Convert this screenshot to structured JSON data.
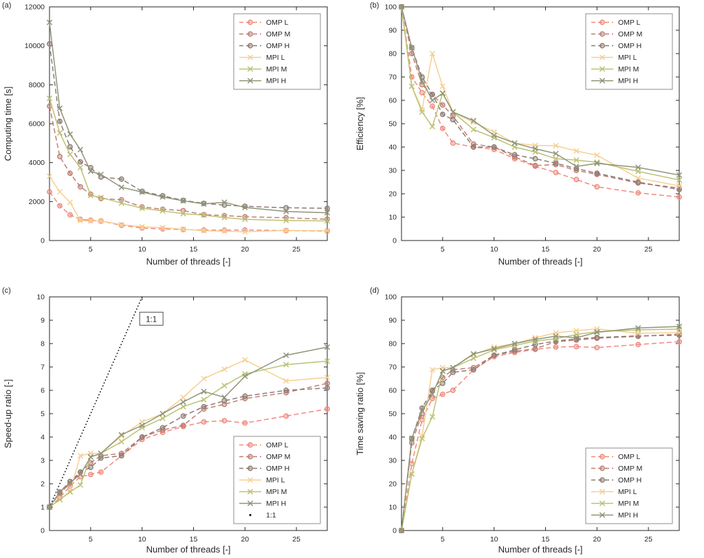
{
  "figure": {
    "background": "#ffffff",
    "text_color": "#262626",
    "axis_color": "#262626",
    "series_styles": [
      {
        "name": "OMP L",
        "color": "#f0897d",
        "line": "dashed",
        "marker": "circle"
      },
      {
        "name": "OMP M",
        "color": "#bf7e74",
        "line": "dashed",
        "marker": "circle"
      },
      {
        "name": "OMP H",
        "color": "#8c7a72",
        "line": "dashed",
        "marker": "circle"
      },
      {
        "name": "MPI L",
        "color": "#f6cf92",
        "line": "solid",
        "marker": "x"
      },
      {
        "name": "MPI M",
        "color": "#bcc173",
        "line": "solid",
        "marker": "x"
      },
      {
        "name": "MPI H",
        "color": "#8e9478",
        "line": "solid",
        "marker": "x"
      },
      {
        "name": "1:1",
        "color": "#1a1a1a",
        "line": "dotted",
        "marker": "dot"
      }
    ]
  },
  "chart_data": [
    {
      "id": "a",
      "panel_label": "(a)",
      "type": "line",
      "xlabel": "Number of threads [-]",
      "ylabel": "Computing time [s]",
      "xlim": [
        1,
        28
      ],
      "ylim": [
        0,
        12000
      ],
      "xticks": [
        5,
        10,
        15,
        20,
        25
      ],
      "yticks": [
        0,
        2000,
        4000,
        6000,
        8000,
        10000,
        12000
      ],
      "grid": false,
      "legend": {
        "position": "top-right",
        "entries": [
          "OMP L",
          "OMP M",
          "OMP H",
          "MPI L",
          "MPI M",
          "MPI H"
        ]
      },
      "x": [
        1,
        2,
        3,
        4,
        5,
        6,
        8,
        10,
        12,
        14,
        16,
        18,
        20,
        24,
        28
      ],
      "series": [
        {
          "name": "OMP L",
          "values": [
            2500,
            1786,
            1316,
            1087,
            1042,
            1000,
            781,
            641,
            595,
            562,
            538,
            532,
            543,
            510,
            481
          ]
        },
        {
          "name": "OMP M",
          "values": [
            6900,
            4313,
            3450,
            2760,
            2379,
            2156,
            2091,
            1725,
            1605,
            1533,
            1327,
            1278,
            1221,
            1169,
            1095
          ]
        },
        {
          "name": "OMP H",
          "values": [
            10100,
            6121,
            4810,
            4040,
            3741,
            3258,
            3156,
            2525,
            2295,
            2061,
            1906,
            1820,
            1757,
            1683,
            1656
          ]
        },
        {
          "name": "MPI L",
          "values": [
            3300,
            2500,
            1964,
            1031,
            1000,
            1000,
            815,
            710,
            660,
            579,
            508,
            478,
            452,
            516,
            504
          ]
        },
        {
          "name": "MPI M",
          "values": [
            7300,
            5530,
            4424,
            3744,
            2317,
            2212,
            1921,
            1659,
            1521,
            1377,
            1304,
            1177,
            1090,
            1028,
            1007
          ]
        },
        {
          "name": "MPI H",
          "values": [
            11200,
            6788,
            5463,
            4667,
            3556,
            3394,
            2732,
            2489,
            2240,
            2036,
            1882,
            1965,
            1697,
            1493,
            1427
          ]
        }
      ]
    },
    {
      "id": "b",
      "panel_label": "(b)",
      "type": "line",
      "xlabel": "Number of threads [-]",
      "ylabel": "Efficiency [%]",
      "xlim": [
        1,
        28
      ],
      "ylim": [
        0,
        100
      ],
      "xticks": [
        5,
        10,
        15,
        20,
        25
      ],
      "yticks": [
        0,
        10,
        20,
        30,
        40,
        50,
        60,
        70,
        80,
        90,
        100
      ],
      "grid": false,
      "legend": {
        "position": "top-right",
        "entries": [
          "OMP L",
          "OMP M",
          "OMP H",
          "MPI L",
          "MPI M",
          "MPI H"
        ]
      },
      "x": [
        1,
        2,
        3,
        4,
        5,
        6,
        8,
        10,
        12,
        14,
        16,
        18,
        20,
        24,
        28
      ],
      "series": [
        {
          "name": "OMP L",
          "values": [
            100,
            70,
            63.3,
            57.5,
            48,
            41.7,
            40,
            39,
            35,
            31.8,
            29.1,
            26.1,
            23,
            20.4,
            18.6
          ]
        },
        {
          "name": "OMP M",
          "values": [
            100,
            80,
            66.7,
            62.5,
            58,
            53.3,
            41.3,
            40,
            35.8,
            32.1,
            32.5,
            30,
            28.3,
            24.6,
            22.5
          ]
        },
        {
          "name": "OMP H",
          "values": [
            100,
            82.5,
            70,
            62.5,
            54,
            51.7,
            40,
            40,
            36.7,
            35,
            33.1,
            30.8,
            28.8,
            25,
            21.8
          ]
        },
        {
          "name": "MPI L",
          "values": [
            100,
            66,
            56,
            80,
            66,
            55,
            50.6,
            46.5,
            41.7,
            40.7,
            40.6,
            38.3,
            36.5,
            26.7,
            23.4
          ]
        },
        {
          "name": "MPI M",
          "values": [
            100,
            66,
            55,
            48.8,
            63,
            55,
            47.5,
            44,
            40,
            37.9,
            35,
            34.4,
            33.5,
            29.6,
            25.9
          ]
        },
        {
          "name": "MPI H",
          "values": [
            100,
            82.5,
            68.3,
            60,
            63,
            55,
            51.3,
            45,
            41.7,
            39.3,
            37.2,
            31.7,
            33,
            31.3,
            28
          ]
        }
      ]
    },
    {
      "id": "c",
      "panel_label": "(c)",
      "type": "line",
      "xlabel": "Number of threads [-]",
      "ylabel": "Speed-up ratio [-]",
      "xlim": [
        1,
        28
      ],
      "ylim": [
        0,
        10
      ],
      "xticks": [
        5,
        10,
        15,
        20,
        25
      ],
      "yticks": [
        0,
        1,
        2,
        3,
        4,
        5,
        6,
        7,
        8,
        9,
        10
      ],
      "grid": false,
      "legend": {
        "position": "bottom-right",
        "entries": [
          "OMP L",
          "OMP M",
          "OMP H",
          "MPI L",
          "MPI M",
          "MPI H",
          "1:1"
        ]
      },
      "reference_line": {
        "name": "1:1",
        "from": [
          1,
          1
        ],
        "to": [
          10,
          10
        ]
      },
      "annotation": {
        "text": "1:1",
        "x": 10.9,
        "y": 9.05
      },
      "x": [
        1,
        2,
        3,
        4,
        5,
        6,
        8,
        10,
        12,
        14,
        16,
        18,
        20,
        24,
        28
      ],
      "series": [
        {
          "name": "OMP L",
          "values": [
            1,
            1.4,
            1.9,
            2.3,
            2.4,
            2.5,
            3.2,
            3.9,
            4.2,
            4.45,
            4.65,
            4.7,
            4.6,
            4.9,
            5.2
          ]
        },
        {
          "name": "OMP M",
          "values": [
            1,
            1.6,
            2.0,
            2.5,
            2.9,
            3.2,
            3.3,
            4.0,
            4.3,
            4.5,
            5.2,
            5.4,
            5.65,
            5.9,
            6.3
          ]
        },
        {
          "name": "OMP H",
          "values": [
            1,
            1.65,
            2.1,
            2.5,
            2.7,
            3.1,
            3.2,
            4.0,
            4.4,
            4.9,
            5.3,
            5.55,
            5.75,
            6.0,
            6.1
          ]
        },
        {
          "name": "MPI L",
          "values": [
            1,
            1.32,
            1.68,
            3.2,
            3.3,
            3.3,
            4.05,
            4.65,
            5.0,
            5.7,
            6.5,
            6.9,
            7.3,
            6.4,
            6.55
          ]
        },
        {
          "name": "MPI M",
          "values": [
            1,
            1.32,
            1.65,
            1.95,
            3.15,
            3.3,
            3.8,
            4.4,
            4.8,
            5.3,
            5.6,
            6.2,
            6.7,
            7.1,
            7.25
          ]
        },
        {
          "name": "MPI H",
          "values": [
            1,
            1.65,
            2.05,
            2.4,
            3.15,
            3.3,
            4.1,
            4.5,
            5.0,
            5.5,
            5.95,
            5.7,
            6.6,
            7.5,
            7.85
          ]
        }
      ]
    },
    {
      "id": "d",
      "panel_label": "(d)",
      "type": "line",
      "xlabel": "Number of threads [-]",
      "ylabel": "Time saving ratio [%]",
      "xlim": [
        1,
        28
      ],
      "ylim": [
        0,
        100
      ],
      "xticks": [
        5,
        10,
        15,
        20,
        25
      ],
      "yticks": [
        0,
        10,
        20,
        30,
        40,
        50,
        60,
        70,
        80,
        90,
        100
      ],
      "grid": false,
      "legend": {
        "position": "bottom-right",
        "entries": [
          "OMP L",
          "OMP M",
          "OMP H",
          "MPI L",
          "MPI M",
          "MPI H"
        ]
      },
      "x": [
        1,
        2,
        3,
        4,
        5,
        6,
        8,
        10,
        12,
        14,
        16,
        18,
        20,
        24,
        28
      ],
      "series": [
        {
          "name": "OMP L",
          "values": [
            0,
            28.6,
            47.4,
            56.5,
            58.3,
            60,
            68.8,
            74.4,
            76.2,
            77.5,
            78.5,
            78.7,
            78.3,
            79.6,
            80.8
          ]
        },
        {
          "name": "OMP M",
          "values": [
            0,
            37.5,
            50,
            60,
            65.5,
            68.8,
            69.7,
            75,
            76.7,
            77.8,
            80.8,
            81.5,
            82.3,
            83.1,
            84.1
          ]
        },
        {
          "name": "OMP H",
          "values": [
            0,
            39.4,
            52.4,
            60,
            63,
            67.7,
            68.8,
            75,
            77.3,
            79.6,
            81.1,
            82,
            82.6,
            83.3,
            83.6
          ]
        },
        {
          "name": "MPI L",
          "values": [
            0,
            24.2,
            40.5,
            68.8,
            69.7,
            69.7,
            75.3,
            78.5,
            80,
            82.5,
            84.6,
            85.5,
            86.3,
            84.4,
            84.7
          ]
        },
        {
          "name": "MPI M",
          "values": [
            0,
            24.2,
            39.4,
            48.7,
            68.3,
            69.7,
            73.7,
            77.3,
            79.2,
            81.1,
            82.1,
            83.9,
            85.1,
            85.9,
            86.2
          ]
        },
        {
          "name": "MPI H",
          "values": [
            0,
            39.4,
            51.2,
            58.3,
            68.3,
            69.7,
            75.6,
            77.8,
            80,
            81.8,
            83.2,
            82.5,
            84.8,
            86.7,
            87.3
          ]
        }
      ]
    }
  ]
}
